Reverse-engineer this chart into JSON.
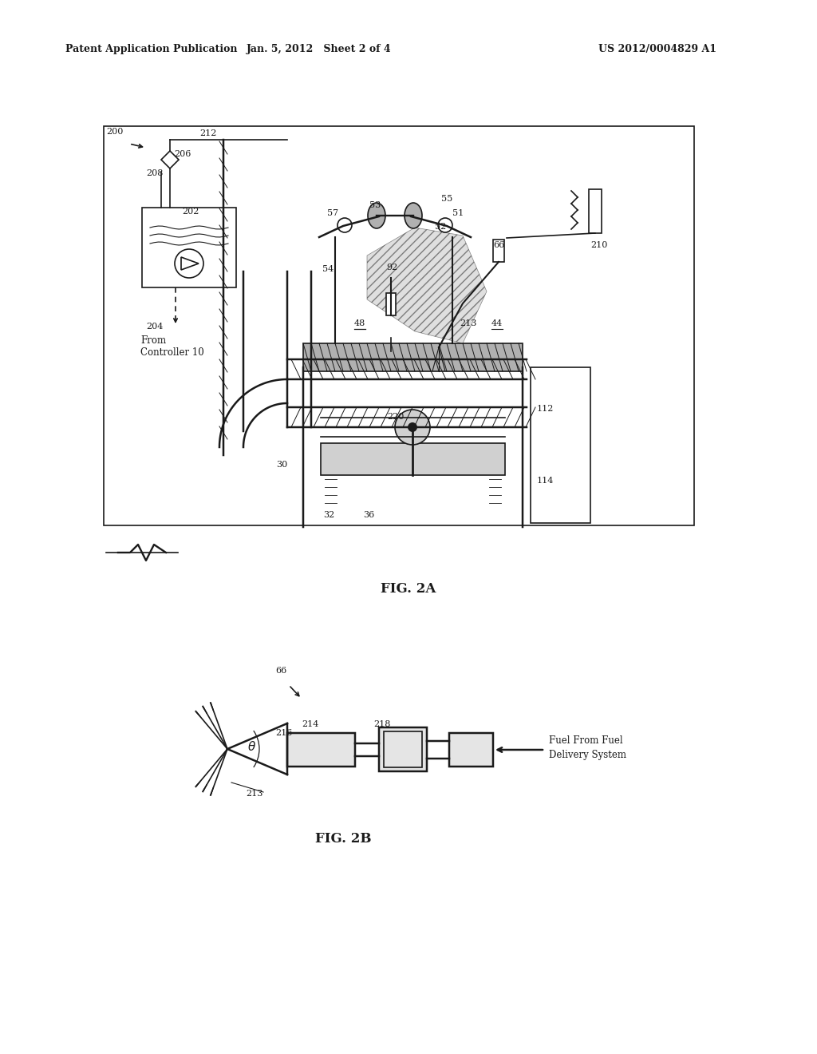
{
  "bg_color": "#ffffff",
  "lc": "#1a1a1a",
  "header_left": "Patent Application Publication",
  "header_center": "Jan. 5, 2012   Sheet 2 of 4",
  "header_right": "US 2012/0004829 A1",
  "fig2a_label": "FIG. 2A",
  "fig2b_label": "FIG. 2B"
}
